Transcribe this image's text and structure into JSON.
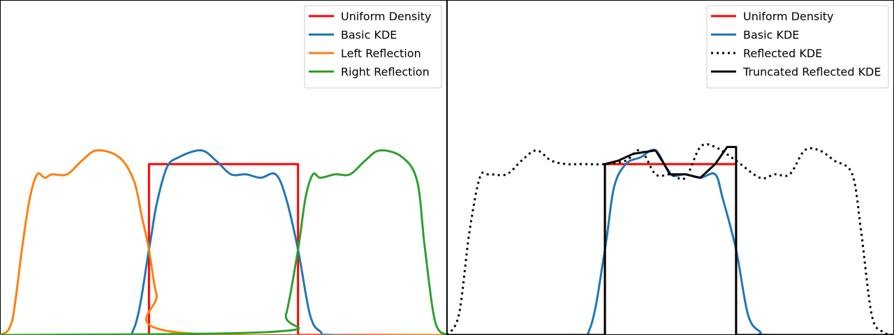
{
  "chart_data": [
    {
      "type": "line",
      "xlim": [
        -1.5,
        1.5
      ],
      "ylim": [
        0,
        0.98
      ],
      "axes_visible": false,
      "legend": "top-right",
      "series": [
        {
          "name": "Uniform Density",
          "color": "#ff0000",
          "style": "solid",
          "x": [
            -1.5,
            -0.5,
            -0.5,
            0.5,
            0.5,
            1.5
          ],
          "y": [
            0,
            0,
            0.5,
            0.5,
            0,
            0
          ]
        },
        {
          "name": "Basic KDE",
          "color": "#1f77b4",
          "style": "solid",
          "x": [
            -1.5,
            -0.75,
            -0.6,
            -0.5,
            -0.45,
            -0.38,
            -0.3,
            -0.15,
            -0.05,
            0.05,
            0.15,
            0.25,
            0.35,
            0.42,
            0.5,
            0.58,
            0.65,
            0.75,
            1.5
          ],
          "y": [
            0,
            0,
            0.02,
            0.25,
            0.38,
            0.49,
            0.52,
            0.54,
            0.51,
            0.47,
            0.47,
            0.46,
            0.47,
            0.4,
            0.25,
            0.06,
            0.01,
            0,
            0
          ]
        },
        {
          "name": "Left Reflection",
          "color": "#ff7f0e",
          "style": "solid",
          "x": [
            -1.5,
            -1.42,
            -1.35,
            -1.3,
            -1.25,
            -1.2,
            -1.15,
            -1.05,
            -0.95,
            -0.85,
            -0.7,
            -0.6,
            -0.55,
            -0.5,
            -0.45,
            -0.35,
            1.5
          ],
          "y": [
            0,
            0.04,
            0.26,
            0.4,
            0.47,
            0.46,
            0.47,
            0.47,
            0.51,
            0.54,
            0.52,
            0.45,
            0.35,
            0.25,
            0.12,
            0.01,
            0
          ]
        },
        {
          "name": "Right Reflection",
          "color": "#2ca02c",
          "style": "solid",
          "x": [
            -1.5,
            0.35,
            0.42,
            0.5,
            0.55,
            0.6,
            0.65,
            0.75,
            0.85,
            0.95,
            1.05,
            1.2,
            1.3,
            1.35,
            1.42,
            1.5
          ],
          "y": [
            0,
            0.01,
            0.06,
            0.25,
            0.4,
            0.47,
            0.46,
            0.47,
            0.47,
            0.51,
            0.54,
            0.52,
            0.45,
            0.26,
            0.04,
            0
          ]
        }
      ]
    },
    {
      "type": "line",
      "xlim": [
        -1.5,
        1.5
      ],
      "ylim": [
        0,
        0.98
      ],
      "axes_visible": false,
      "legend": "top-right",
      "series": [
        {
          "name": "Uniform Density",
          "color": "#ff0000",
          "style": "solid",
          "x": [
            -1.5,
            -0.44,
            -0.44,
            0.44,
            0.44,
            1.5
          ],
          "y": [
            0,
            0,
            0.5,
            0.5,
            0,
            0
          ]
        },
        {
          "name": "Basic KDE",
          "color": "#1f77b4",
          "style": "solid",
          "x": [
            -1.5,
            -0.68,
            -0.54,
            -0.44,
            -0.38,
            -0.3,
            -0.2,
            -0.1,
            0,
            0.1,
            0.2,
            0.3,
            0.35,
            0.44,
            0.52,
            0.6,
            0.68,
            1.5
          ],
          "y": [
            0,
            0,
            0.02,
            0.25,
            0.43,
            0.5,
            0.52,
            0.54,
            0.47,
            0.47,
            0.46,
            0.47,
            0.4,
            0.25,
            0.06,
            0.01,
            0,
            0
          ]
        },
        {
          "name": "Reflected KDE",
          "color": "#000000",
          "style": "dotted",
          "x": [
            -1.5,
            -1.42,
            -1.35,
            -1.28,
            -1.22,
            -1.1,
            -1.0,
            -0.9,
            -0.8,
            -0.7,
            -0.6,
            -0.44,
            -0.3,
            -0.2,
            -0.1,
            0,
            0.1,
            0.2,
            0.3,
            0.44,
            0.6,
            0.7,
            0.8,
            0.9,
            1.0,
            1.1,
            1.22,
            1.28,
            1.35,
            1.42,
            1.5
          ],
          "y": [
            0,
            0.06,
            0.3,
            0.46,
            0.47,
            0.47,
            0.51,
            0.54,
            0.51,
            0.5,
            0.5,
            0.5,
            0.51,
            0.54,
            0.47,
            0.47,
            0.46,
            0.55,
            0.55,
            0.51,
            0.46,
            0.47,
            0.47,
            0.54,
            0.54,
            0.51,
            0.47,
            0.3,
            0.06,
            0.01,
            0
          ]
        },
        {
          "name": "Truncated Reflected KDE",
          "color": "#000000",
          "style": "solid",
          "x": [
            -1.5,
            -0.44,
            -0.44,
            -0.35,
            -0.25,
            -0.1,
            0,
            0.1,
            0.2,
            0.3,
            0.38,
            0.44,
            0.44,
            1.5
          ],
          "y": [
            0,
            0,
            0.5,
            0.51,
            0.53,
            0.54,
            0.47,
            0.47,
            0.46,
            0.5,
            0.55,
            0.55,
            0,
            0
          ]
        }
      ]
    }
  ]
}
